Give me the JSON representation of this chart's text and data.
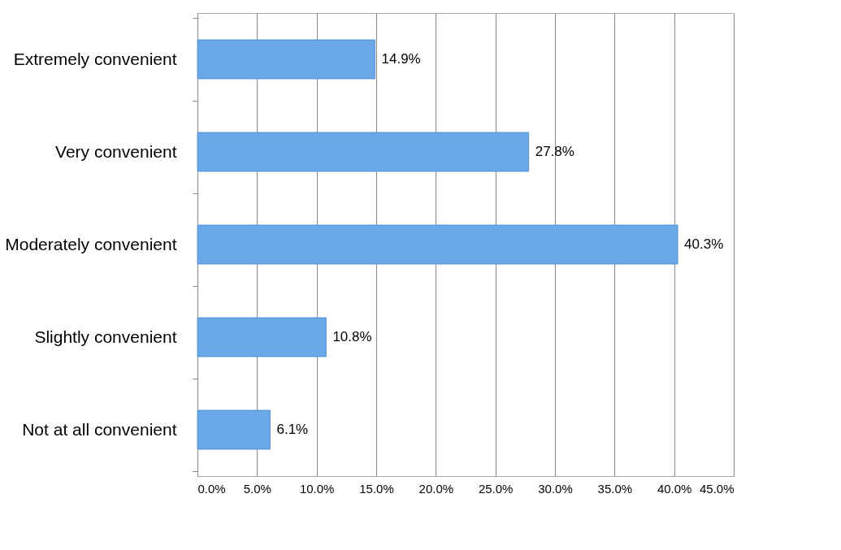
{
  "chart_data": {
    "type": "bar",
    "orientation": "horizontal",
    "categories": [
      "Extremely convenient",
      "Very convenient",
      "Moderately convenient",
      "Slightly convenient",
      "Not at all convenient"
    ],
    "values": [
      14.9,
      27.8,
      40.3,
      10.8,
      6.1
    ],
    "color": "#6aa8ea",
    "value_labels": [
      "14.9%",
      "27.8%",
      "40.3%",
      "10.8%",
      "6.1%"
    ],
    "xlim": [
      0,
      45
    ],
    "xticks": [
      {
        "value": 0,
        "label": "0.0%"
      },
      {
        "value": 5,
        "label": "5.0%"
      },
      {
        "value": 10,
        "label": "10.0%"
      },
      {
        "value": 15,
        "label": "15.0%"
      },
      {
        "value": 20,
        "label": "20.0%"
      },
      {
        "value": 25,
        "label": "25.0%"
      },
      {
        "value": 30,
        "label": "30.0%"
      },
      {
        "value": 35,
        "label": "35.0%"
      },
      {
        "value": 40,
        "label": "40.0%"
      },
      {
        "value": 45,
        "label": "45.0%"
      }
    ],
    "grid": "x"
  }
}
